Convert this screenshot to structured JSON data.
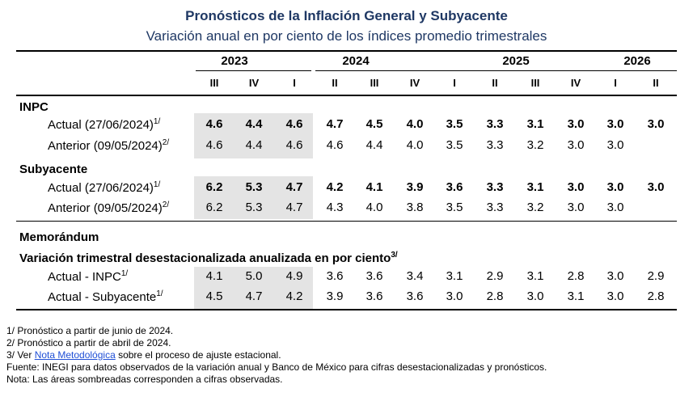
{
  "title": "Pronósticos de la Inflación General y Subyacente",
  "subtitle": "Variación anual en por ciento de los índices promedio trimestrales",
  "years": [
    "2023",
    "2024",
    "2025",
    "2026"
  ],
  "quarters": [
    "III",
    "IV",
    "I",
    "II",
    "III",
    "IV",
    "I",
    "II",
    "III",
    "IV",
    "I",
    "II"
  ],
  "sections": {
    "inpc": "INPC",
    "subyacente": "Subyacente",
    "memorandum": "Memorándum",
    "memo_subtitle": "Variación trimestral desestacionalizada anualizada en por ciento",
    "memo_subtitle_sup": "3/"
  },
  "rows": [
    {
      "label": "Actual (27/06/2024)",
      "sup": "1/",
      "bold": true,
      "values": [
        "4.6",
        "4.4",
        "4.6",
        "4.7",
        "4.5",
        "4.0",
        "3.5",
        "3.3",
        "3.1",
        "3.0",
        "3.0",
        "3.0"
      ]
    },
    {
      "label": "Anterior (09/05/2024)",
      "sup": "2/",
      "bold": false,
      "values": [
        "4.6",
        "4.4",
        "4.6",
        "4.6",
        "4.4",
        "4.0",
        "3.5",
        "3.3",
        "3.2",
        "3.0",
        "3.0",
        ""
      ]
    },
    {
      "label": "Actual (27/06/2024)",
      "sup": "1/",
      "bold": true,
      "values": [
        "6.2",
        "5.3",
        "4.7",
        "4.2",
        "4.1",
        "3.9",
        "3.6",
        "3.3",
        "3.1",
        "3.0",
        "3.0",
        "3.0"
      ]
    },
    {
      "label": "Anterior (09/05/2024)",
      "sup": "2/",
      "bold": false,
      "values": [
        "6.2",
        "5.3",
        "4.7",
        "4.3",
        "4.0",
        "3.8",
        "3.5",
        "3.3",
        "3.2",
        "3.0",
        "3.0",
        ""
      ]
    },
    {
      "label": "Actual - INPC",
      "sup": "1/",
      "bold": false,
      "values": [
        "4.1",
        "5.0",
        "4.9",
        "3.6",
        "3.6",
        "3.4",
        "3.1",
        "2.9",
        "3.1",
        "2.8",
        "3.0",
        "2.9"
      ]
    },
    {
      "label": "Actual - Subyacente",
      "sup": "1/",
      "bold": false,
      "values": [
        "4.5",
        "4.7",
        "4.2",
        "3.9",
        "3.6",
        "3.6",
        "3.0",
        "2.8",
        "3.0",
        "3.1",
        "3.0",
        "2.8"
      ]
    }
  ],
  "notes": {
    "n1": "1/ Pronóstico a partir de junio de 2024.",
    "n2": "2/ Pronóstico a partir de abril de 2024.",
    "n3_pre": "3/ Ver ",
    "n3_link": "Nota Metodológica",
    "n3_post": " sobre el proceso de ajuste estacional.",
    "n4": "Fuente: INEGI para datos observados de la variación anual y Banco de México para cifras desestacionalizadas y pronósticos.",
    "n5": "Nota: Las áreas sombreadas corresponden a cifras observadas."
  }
}
